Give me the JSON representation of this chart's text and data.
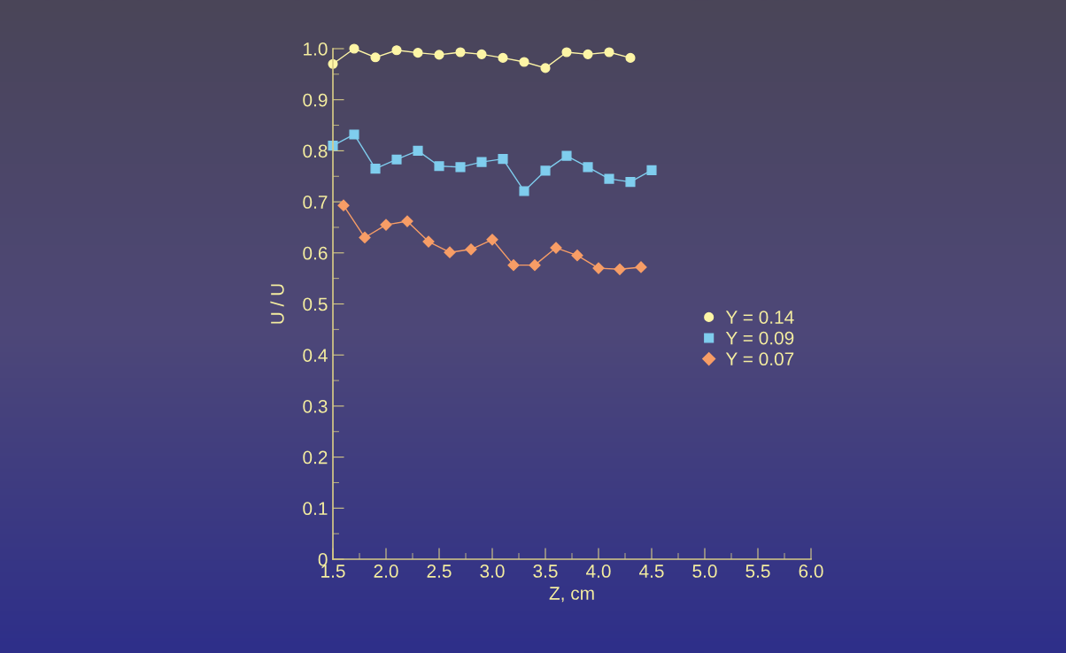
{
  "chart_data": {
    "type": "line",
    "xlabel": "Z, cm",
    "ylabel": "U / U",
    "xlim": [
      1.5,
      6.0
    ],
    "xticks": [
      1.5,
      {
        "value": 2,
        "label": "2.0"
      },
      2.5,
      {
        "value": 3,
        "label": "3.0"
      },
      3.5,
      {
        "value": 4,
        "label": "4.0"
      },
      4.5,
      {
        "value": 5,
        "label": "5.0"
      },
      5.5,
      {
        "value": 6,
        "label": "6.0"
      }
    ],
    "ylim": [
      0,
      1.0
    ],
    "yticks": [
      0,
      0.1,
      0.2,
      0.3,
      0.4,
      0.5,
      0.6,
      0.7,
      0.8,
      0.9,
      {
        "value": 1,
        "label": "1.0"
      }
    ],
    "grid": false,
    "legend": "right",
    "line_style": "solid",
    "series": [
      {
        "name": "Y = 0.14",
        "color": "#fdf5a6",
        "marker": "circle",
        "x": [
          1.5,
          1.7,
          1.9,
          2.1,
          2.3,
          2.5,
          2.7,
          2.9,
          3.1,
          3.3,
          3.5,
          3.7,
          3.9,
          4.1,
          4.3
        ],
        "values": [
          0.97,
          1.0,
          0.983,
          0.997,
          0.992,
          0.988,
          0.993,
          0.989,
          0.982,
          0.974,
          0.962,
          0.993,
          0.989,
          0.993,
          0.982
        ]
      },
      {
        "name": "Y = 0.09",
        "color": "#7fcdee",
        "marker": "square",
        "x": [
          1.5,
          1.7,
          1.9,
          2.1,
          2.3,
          2.5,
          2.7,
          2.9,
          3.1,
          3.3,
          3.5,
          3.7,
          3.9,
          4.1,
          4.3,
          4.5
        ],
        "values": [
          0.81,
          0.832,
          0.765,
          0.783,
          0.8,
          0.77,
          0.768,
          0.778,
          0.784,
          0.721,
          0.761,
          0.79,
          0.768,
          0.745,
          0.739,
          0.762
        ]
      },
      {
        "name": "Y = 0.07",
        "color": "#f79d66",
        "marker": "diamond",
        "x": [
          1.6,
          1.8,
          2.0,
          2.2,
          2.4,
          2.6,
          2.8,
          3.0,
          3.2,
          3.4,
          3.6,
          3.8,
          4.0,
          4.2,
          4.4
        ],
        "values": [
          0.693,
          0.63,
          0.655,
          0.662,
          0.622,
          0.601,
          0.607,
          0.626,
          0.576,
          0.576,
          0.61,
          0.595,
          0.57,
          0.568,
          0.572
        ]
      }
    ]
  }
}
